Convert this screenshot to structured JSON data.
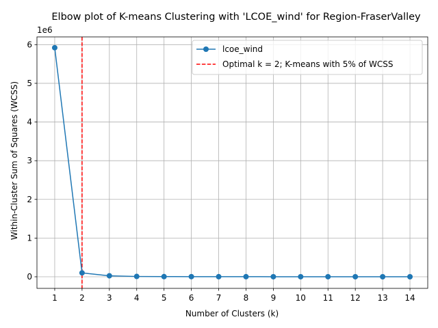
{
  "chart_data": {
    "type": "line",
    "title": "Elbow plot of K-means Clustering with 'LCOE_wind' for Region-FraserValley",
    "xlabel": "Number of Clusters (k)",
    "ylabel": "Within-Cluster Sum of Squares (WCSS)",
    "y_offset_label": "1e6",
    "x_ticks": [
      "1",
      "2",
      "3",
      "4",
      "5",
      "6",
      "7",
      "8",
      "9",
      "10",
      "11",
      "12",
      "13",
      "14"
    ],
    "y_ticks": [
      "0",
      "1",
      "2",
      "3",
      "4",
      "5",
      "6"
    ],
    "xlim": [
      0.35,
      14.65
    ],
    "ylim": [
      -0.3,
      6.2
    ],
    "y_tick_values": [
      0,
      1,
      2,
      3,
      4,
      5,
      6
    ],
    "grid": true,
    "legend_position": "top-right",
    "series": [
      {
        "name": "lcoe_wind",
        "color": "#1f77b4",
        "x": [
          1,
          2,
          3,
          4,
          5,
          6,
          7,
          8,
          9,
          10,
          11,
          12,
          13,
          14
        ],
        "y": [
          5.92,
          0.1,
          0.025,
          0.008,
          0.004,
          0.003,
          0.002,
          0.002,
          0.001,
          0.001,
          0.001,
          0.001,
          0.0005,
          0.0005
        ]
      }
    ],
    "optimal_line": {
      "x": 2,
      "color": "#ff0000",
      "label": "Optimal k = 2; K-means with 5% of WCSS"
    }
  }
}
